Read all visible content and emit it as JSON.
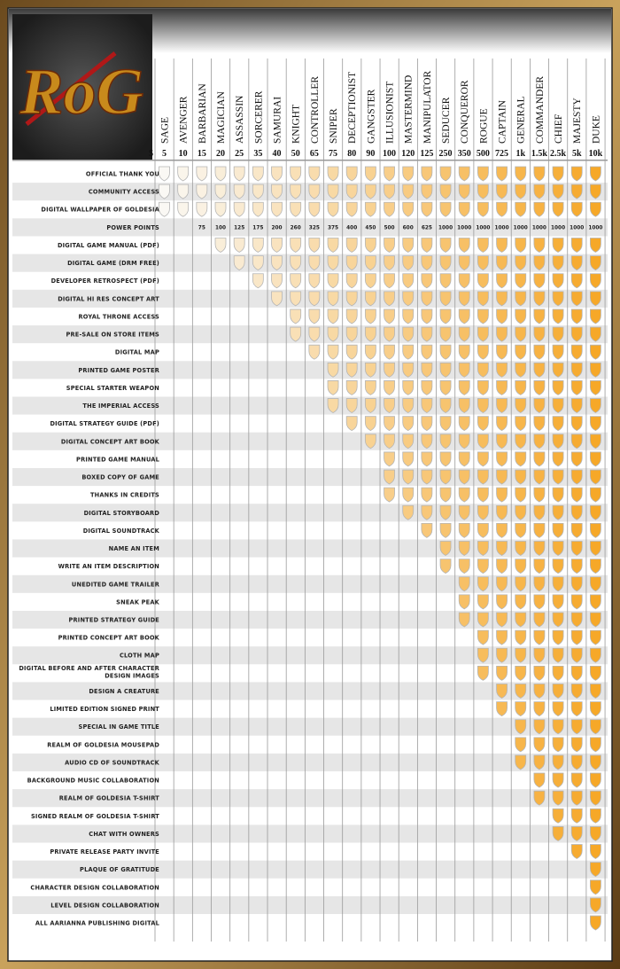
{
  "logo_text": "RoG",
  "currency_label": "$",
  "tiers": [
    {
      "name": "SAGE",
      "price": "5"
    },
    {
      "name": "AVENGER",
      "price": "10"
    },
    {
      "name": "BARBARIAN",
      "price": "15"
    },
    {
      "name": "MAGICIAN",
      "price": "20"
    },
    {
      "name": "ASSASSIN",
      "price": "25"
    },
    {
      "name": "SORCERER",
      "price": "35"
    },
    {
      "name": "SAMURAI",
      "price": "40"
    },
    {
      "name": "KNIGHT",
      "price": "50"
    },
    {
      "name": "CONTROLLER",
      "price": "65"
    },
    {
      "name": "SNIPER",
      "price": "75"
    },
    {
      "name": "DECEPTIONIST",
      "price": "80"
    },
    {
      "name": "GANGSTER",
      "price": "90"
    },
    {
      "name": "ILLUSIONIST",
      "price": "100"
    },
    {
      "name": "MASTERMIND",
      "price": "120"
    },
    {
      "name": "MANIPULATOR",
      "price": "125"
    },
    {
      "name": "SEDUCER",
      "price": "250"
    },
    {
      "name": "CONQUEROR",
      "price": "350"
    },
    {
      "name": "ROGUE",
      "price": "500"
    },
    {
      "name": "CAPTAIN",
      "price": "725"
    },
    {
      "name": "GENERAL",
      "price": "1k"
    },
    {
      "name": "COMMANDER",
      "price": "1.5k"
    },
    {
      "name": "CHIEF",
      "price": "2.5k"
    },
    {
      "name": "MAJESTY",
      "price": "5k"
    },
    {
      "name": "DUKE",
      "price": "10k"
    }
  ],
  "rewards": [
    {
      "label": "OFFICIAL THANK YOU",
      "first_tier": 0
    },
    {
      "label": "COMMUNITY ACCESS",
      "first_tier": 0
    },
    {
      "label": "DIGITAL WALLPAPER OF  GOLDESIA",
      "first_tier": 0
    },
    {
      "label": "POWER POINTS",
      "values": [
        null,
        null,
        75,
        100,
        125,
        175,
        200,
        260,
        325,
        375,
        400,
        450,
        500,
        600,
        625,
        1000,
        1000,
        1000,
        1000,
        1000,
        1000,
        1000,
        1000,
        1000
      ]
    },
    {
      "label": "DIGITAL GAME MANUAL (PDF)",
      "first_tier": 3
    },
    {
      "label": "DIGITAL GAME (DRM FREE)",
      "first_tier": 4
    },
    {
      "label": "DEVELOPER RETROSPECT (PDF)",
      "first_tier": 5
    },
    {
      "label": "DIGITAL HI RES CONCEPT ART",
      "first_tier": 6
    },
    {
      "label": "ROYAL THRONE ACCESS",
      "first_tier": 7
    },
    {
      "label": "PRE-SALE ON STORE ITEMS",
      "first_tier": 7
    },
    {
      "label": "DIGITAL MAP",
      "first_tier": 8
    },
    {
      "label": "PRINTED GAME POSTER",
      "first_tier": 9
    },
    {
      "label": "SPECIAL STARTER WEAPON",
      "first_tier": 9
    },
    {
      "label": "THE IMPERIAL ACCESS",
      "first_tier": 9
    },
    {
      "label": "DIGITAL STRATEGY GUIDE (PDF)",
      "first_tier": 10
    },
    {
      "label": "DIGITAL CONCEPT ART BOOK",
      "first_tier": 11
    },
    {
      "label": "PRINTED GAME MANUAL",
      "first_tier": 12
    },
    {
      "label": "BOXED COPY OF GAME",
      "first_tier": 12
    },
    {
      "label": "THANKS IN CREDITS",
      "first_tier": 12
    },
    {
      "label": "DIGITAL STORYBOARD",
      "first_tier": 13
    },
    {
      "label": "DIGITAL SOUNDTRACK",
      "first_tier": 14
    },
    {
      "label": "NAME AN ITEM",
      "first_tier": 15
    },
    {
      "label": "WRITE AN ITEM DESCRIPTION",
      "first_tier": 15
    },
    {
      "label": "UNEDITED GAME TRAILER",
      "first_tier": 16
    },
    {
      "label": "SNEAK PEAK",
      "first_tier": 16
    },
    {
      "label": "PRINTED STRATEGY GUIDE",
      "first_tier": 16
    },
    {
      "label": "PRINTED CONCEPT ART BOOK",
      "first_tier": 17
    },
    {
      "label": "CLOTH MAP",
      "first_tier": 17
    },
    {
      "label": "DIGITAL BEFORE AND AFTER CHARACTER DESIGN IMAGES",
      "first_tier": 17
    },
    {
      "label": "DESIGN A CREATURE",
      "first_tier": 18
    },
    {
      "label": "LIMITED EDITION SIGNED PRINT",
      "first_tier": 18
    },
    {
      "label": "SPECIAL IN GAME TITLE",
      "first_tier": 19
    },
    {
      "label": "REALM OF GOLDESIA MOUSEPAD",
      "first_tier": 19
    },
    {
      "label": "AUDIO CD OF SOUNDTRACK",
      "first_tier": 19
    },
    {
      "label": "BACKGROUND MUSIC COLLABORATION",
      "first_tier": 20
    },
    {
      "label": "REALM OF GOLDESIA T-SHIRT",
      "first_tier": 20
    },
    {
      "label": "SIGNED REALM OF GOLDESIA T-SHIRT",
      "first_tier": 21
    },
    {
      "label": "CHAT WITH OWNERS",
      "first_tier": 21
    },
    {
      "label": "PRIVATE RELEASE PARTY INVITE",
      "first_tier": 22
    },
    {
      "label": "PLAQUE OF GRATITUDE",
      "first_tier": 23
    },
    {
      "label": "CHARACTER DESIGN COLLABORATION",
      "first_tier": 23
    },
    {
      "label": "LEVEL DESIGN COLLABORATION",
      "first_tier": 23
    },
    {
      "label": "ALL AARIANNA PUBLISHING DIGITAL",
      "first_tier": 23
    }
  ]
}
